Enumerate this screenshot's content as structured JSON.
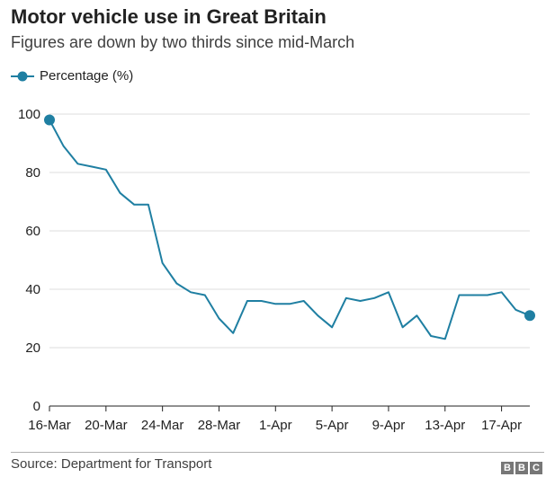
{
  "chart_data": {
    "type": "line",
    "title": "Motor vehicle use in Great Britain",
    "subtitle": "Figures are down by two thirds since mid-March",
    "xlabel": "",
    "ylabel": "",
    "ylim": [
      0,
      100
    ],
    "yticks": [
      0,
      20,
      40,
      60,
      80,
      100
    ],
    "x_tick_labels": [
      "16-Mar",
      "20-Mar",
      "24-Mar",
      "28-Mar",
      "1-Apr",
      "5-Apr",
      "9-Apr",
      "13-Apr",
      "17-Apr"
    ],
    "x_tick_indices": [
      0,
      4,
      8,
      12,
      16,
      20,
      24,
      28,
      32
    ],
    "categories": [
      "16-Mar",
      "17-Mar",
      "18-Mar",
      "19-Mar",
      "20-Mar",
      "21-Mar",
      "22-Mar",
      "23-Mar",
      "24-Mar",
      "25-Mar",
      "26-Mar",
      "27-Mar",
      "28-Mar",
      "29-Mar",
      "30-Mar",
      "31-Mar",
      "1-Apr",
      "2-Apr",
      "3-Apr",
      "4-Apr",
      "5-Apr",
      "6-Apr",
      "7-Apr",
      "8-Apr",
      "9-Apr",
      "10-Apr",
      "11-Apr",
      "12-Apr",
      "13-Apr",
      "14-Apr",
      "15-Apr",
      "16-Apr",
      "17-Apr",
      "18-Apr",
      "19-Apr"
    ],
    "series": [
      {
        "name": "Percentage  (%)",
        "color": "#1f7fa2",
        "values": [
          98,
          89,
          83,
          82,
          81,
          73,
          69,
          69,
          49,
          42,
          39,
          38,
          30,
          25,
          36,
          36,
          35,
          35,
          36,
          31,
          27,
          37,
          36,
          37,
          39,
          27,
          31,
          24,
          23,
          38,
          38,
          38,
          39,
          33,
          31
        ]
      }
    ],
    "legend": "top-left",
    "grid": "horizontal"
  },
  "source": "Source: Department for Transport",
  "logo_letters": [
    "B",
    "B",
    "C"
  ]
}
